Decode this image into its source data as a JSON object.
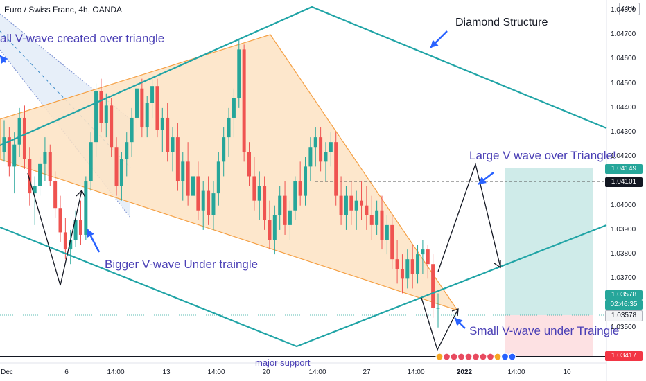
{
  "header": {
    "title": "Euro / Swiss Franc, 4h, OANDA",
    "currency_button": "CHF"
  },
  "annotations": {
    "small_v_over": "all V-wave created over triangle",
    "diamond": "Diamond Structure",
    "large_v": "Large V wave over Triangle!",
    "bigger_v_under": "Bigger V-wave Under traingle",
    "small_v_under": "Small V-wave under Traingle",
    "major_support": "major support"
  },
  "price_tags": {
    "target": "1.04149",
    "dashed_level": "1.04101",
    "last_price": "1.03578",
    "countdown": "02:46:35",
    "entry": "1.03578",
    "support": "1.03417"
  },
  "colors": {
    "bull": "#26a69a",
    "bear": "#ef5350",
    "diamond": "#20a4a6",
    "triangle_fill": "#fde3c3",
    "triangle_line": "#f5a044",
    "annotation_text": "#4a3fb5",
    "arrow_blue": "#2962ff",
    "support_tag": "#f23645"
  },
  "chart_data": {
    "type": "candlestick",
    "symbol": "EURCHF",
    "timeframe": "4h",
    "ylim": [
      1.0338,
      1.0482
    ],
    "y_ticks": [
      "1.04800",
      "1.04700",
      "1.04600",
      "1.04500",
      "1.04400",
      "1.04300",
      "1.04200",
      "1.04000",
      "1.03900",
      "1.03800",
      "1.03700",
      "1.03500"
    ],
    "x_ticks": [
      "Dec",
      "6",
      "14:00",
      "13",
      "14:00",
      "20",
      "14:00",
      "27",
      "14:00",
      "2022",
      "14:00",
      "10"
    ],
    "candles": [
      [
        1.0422,
        1.0435,
        1.0418,
        1.0428
      ],
      [
        1.0428,
        1.0432,
        1.0412,
        1.0416
      ],
      [
        1.0416,
        1.043,
        1.0405,
        1.0425
      ],
      [
        1.0425,
        1.044,
        1.042,
        1.0436
      ],
      [
        1.0436,
        1.0441,
        1.0415,
        1.0419
      ],
      [
        1.0419,
        1.0424,
        1.04,
        1.0405
      ],
      [
        1.0405,
        1.0412,
        1.0392,
        1.0408
      ],
      [
        1.0408,
        1.042,
        1.0404,
        1.0417
      ],
      [
        1.0417,
        1.0428,
        1.041,
        1.0422
      ],
      [
        1.0422,
        1.0425,
        1.0408,
        1.041
      ],
      [
        1.041,
        1.0414,
        1.0395,
        1.0399
      ],
      [
        1.0399,
        1.0404,
        1.0385,
        1.0389
      ],
      [
        1.0389,
        1.0395,
        1.0378,
        1.0382
      ],
      [
        1.0382,
        1.039,
        1.0376,
        1.0386
      ],
      [
        1.0386,
        1.0398,
        1.0383,
        1.0394
      ],
      [
        1.0394,
        1.0402,
        1.0384,
        1.0388
      ],
      [
        1.0388,
        1.0412,
        1.0386,
        1.041
      ],
      [
        1.041,
        1.043,
        1.0406,
        1.0426
      ],
      [
        1.0426,
        1.045,
        1.042,
        1.0447
      ],
      [
        1.0447,
        1.0452,
        1.043,
        1.0434
      ],
      [
        1.0434,
        1.0446,
        1.0428,
        1.0441
      ],
      [
        1.0441,
        1.0444,
        1.042,
        1.0424
      ],
      [
        1.0424,
        1.0428,
        1.0404,
        1.0408
      ],
      [
        1.0408,
        1.0422,
        1.0402,
        1.0419
      ],
      [
        1.0419,
        1.043,
        1.0412,
        1.0426
      ],
      [
        1.0426,
        1.044,
        1.042,
        1.0436
      ],
      [
        1.0436,
        1.0452,
        1.043,
        1.0448
      ],
      [
        1.0448,
        1.0452,
        1.0428,
        1.0432
      ],
      [
        1.0432,
        1.0445,
        1.0428,
        1.0442
      ],
      [
        1.0442,
        1.0453,
        1.0436,
        1.0449
      ],
      [
        1.0449,
        1.0452,
        1.0428,
        1.0431
      ],
      [
        1.0431,
        1.044,
        1.0422,
        1.0436
      ],
      [
        1.0436,
        1.0442,
        1.0418,
        1.0422
      ],
      [
        1.0422,
        1.0432,
        1.0414,
        1.0428
      ],
      [
        1.0428,
        1.0434,
        1.0406,
        1.041
      ],
      [
        1.041,
        1.0422,
        1.0402,
        1.0418
      ],
      [
        1.0418,
        1.0426,
        1.04,
        1.0404
      ],
      [
        1.0404,
        1.0416,
        1.0398,
        1.0412
      ],
      [
        1.0412,
        1.0418,
        1.0394,
        1.0398
      ],
      [
        1.0398,
        1.041,
        1.039,
        1.0406
      ],
      [
        1.0406,
        1.0412,
        1.0392,
        1.0396
      ],
      [
        1.0396,
        1.041,
        1.039,
        1.0405
      ],
      [
        1.0405,
        1.0422,
        1.04,
        1.0418
      ],
      [
        1.0418,
        1.0432,
        1.0412,
        1.0428
      ],
      [
        1.0428,
        1.044,
        1.042,
        1.0436
      ],
      [
        1.0436,
        1.0448,
        1.0428,
        1.0444
      ],
      [
        1.0444,
        1.0468,
        1.044,
        1.0464
      ],
      [
        1.0464,
        1.0466,
        1.0418,
        1.0422
      ],
      [
        1.0422,
        1.0426,
        1.0408,
        1.0412
      ],
      [
        1.0412,
        1.042,
        1.0398,
        1.0402
      ],
      [
        1.0402,
        1.0414,
        1.0394,
        1.0408
      ],
      [
        1.0408,
        1.0412,
        1.039,
        1.0394
      ],
      [
        1.0394,
        1.0402,
        1.0382,
        1.0386
      ],
      [
        1.0386,
        1.04,
        1.038,
        1.0396
      ],
      [
        1.0396,
        1.0408,
        1.039,
        1.0404
      ],
      [
        1.0404,
        1.041,
        1.0388,
        1.0392
      ],
      [
        1.0392,
        1.0402,
        1.0386,
        1.0398
      ],
      [
        1.0398,
        1.0412,
        1.0394,
        1.041
      ],
      [
        1.041,
        1.0418,
        1.04,
        1.0404
      ],
      [
        1.0404,
        1.042,
        1.04,
        1.0416
      ],
      [
        1.0416,
        1.0428,
        1.041,
        1.0424
      ],
      [
        1.0424,
        1.0432,
        1.0416,
        1.0428
      ],
      [
        1.0428,
        1.0432,
        1.0414,
        1.0418
      ],
      [
        1.0418,
        1.0426,
        1.041,
        1.0422
      ],
      [
        1.0422,
        1.043,
        1.0416,
        1.0426
      ],
      [
        1.0426,
        1.043,
        1.04,
        1.0404
      ],
      [
        1.0404,
        1.0412,
        1.0392,
        1.0396
      ],
      [
        1.0396,
        1.0408,
        1.039,
        1.0404
      ],
      [
        1.0404,
        1.041,
        1.0392,
        1.0398
      ],
      [
        1.0398,
        1.0406,
        1.039,
        1.0402
      ],
      [
        1.0402,
        1.041,
        1.0394,
        1.04
      ],
      [
        1.04,
        1.0408,
        1.039,
        1.0396
      ],
      [
        1.0396,
        1.0404,
        1.0386,
        1.0392
      ],
      [
        1.0392,
        1.0402,
        1.0388,
        1.0398
      ],
      [
        1.0398,
        1.0404,
        1.0382,
        1.0386
      ],
      [
        1.0386,
        1.0396,
        1.038,
        1.0392
      ],
      [
        1.0392,
        1.0396,
        1.0374,
        1.0378
      ],
      [
        1.0378,
        1.0386,
        1.0368,
        1.0374
      ],
      [
        1.0374,
        1.038,
        1.0364,
        1.037
      ],
      [
        1.037,
        1.0382,
        1.0366,
        1.0378
      ],
      [
        1.0378,
        1.0384,
        1.0366,
        1.0372
      ],
      [
        1.0372,
        1.0384,
        1.0368,
        1.038
      ],
      [
        1.038,
        1.0386,
        1.0372,
        1.0382
      ],
      [
        1.0382,
        1.0384,
        1.037,
        1.0376
      ],
      [
        1.0376,
        1.038,
        1.0354,
        1.0358
      ],
      [
        1.0358,
        1.0364,
        1.035,
        1.0358
      ]
    ]
  }
}
